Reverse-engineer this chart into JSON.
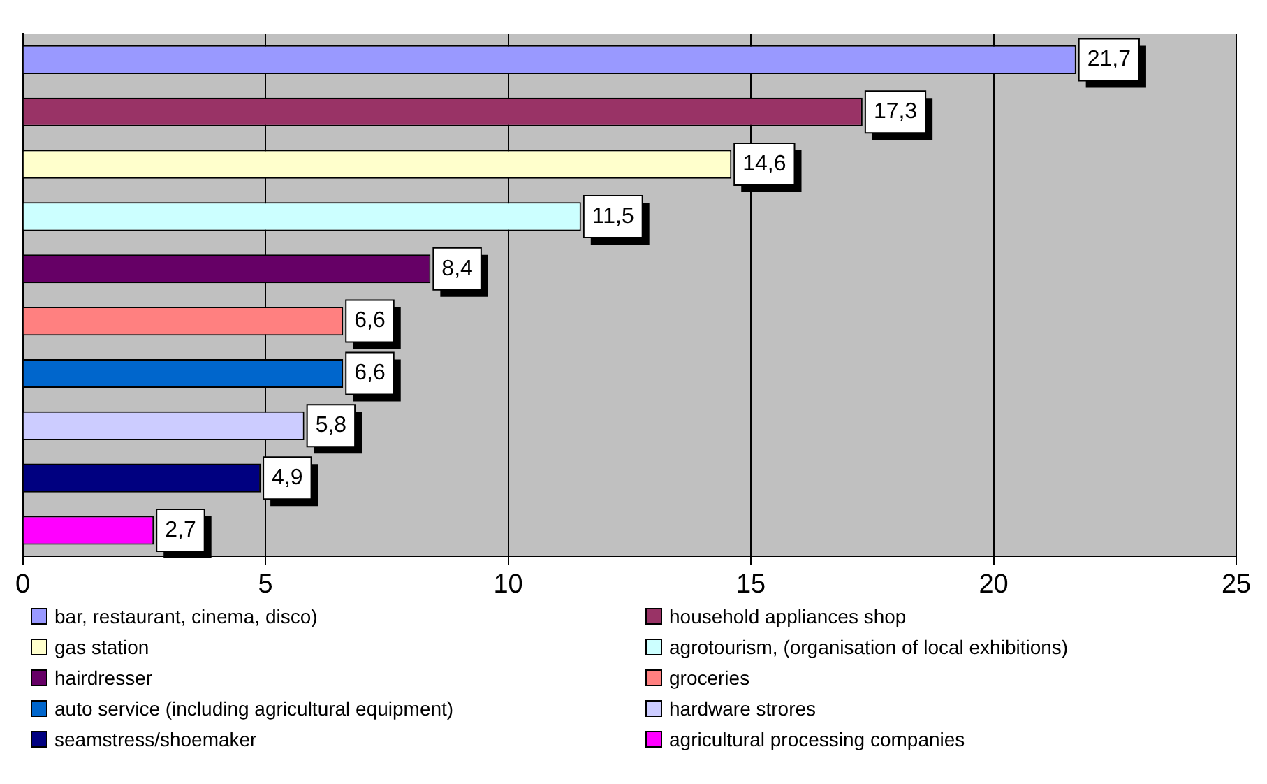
{
  "chart_data": {
    "type": "bar",
    "orientation": "horizontal",
    "categories": [
      null,
      null,
      null,
      null,
      null,
      null,
      null,
      null,
      null,
      null
    ],
    "series": [
      {
        "name": "bar, restaurant, cinema, disco)",
        "color": "#9999ff",
        "values": [
          21.7,
          null,
          null,
          null,
          null,
          null,
          null,
          null,
          null,
          null
        ],
        "value_labels": [
          "21,7",
          null,
          null,
          null,
          null,
          null,
          null,
          null,
          null,
          null
        ]
      },
      {
        "name": "household appliances shop",
        "color": "#993366",
        "values": [
          null,
          17.3,
          null,
          null,
          null,
          null,
          null,
          null,
          null,
          null
        ],
        "value_labels": [
          null,
          "17,3",
          null,
          null,
          null,
          null,
          null,
          null,
          null,
          null
        ]
      },
      {
        "name": "gas station",
        "color": "#ffffcc",
        "values": [
          null,
          null,
          14.6,
          null,
          null,
          null,
          null,
          null,
          null,
          null
        ],
        "value_labels": [
          null,
          null,
          "14,6",
          null,
          null,
          null,
          null,
          null,
          null,
          null
        ]
      },
      {
        "name": "agrotourism, (organisation of local exhibitions)",
        "color": "#ccffff",
        "values": [
          null,
          null,
          null,
          11.5,
          null,
          null,
          null,
          null,
          null,
          null
        ],
        "value_labels": [
          null,
          null,
          null,
          "11,5",
          null,
          null,
          null,
          null,
          null,
          null
        ]
      },
      {
        "name": "hairdresser",
        "color": "#660066",
        "values": [
          null,
          null,
          null,
          null,
          8.4,
          null,
          null,
          null,
          null,
          null
        ],
        "value_labels": [
          null,
          null,
          null,
          null,
          "8,4",
          null,
          null,
          null,
          null,
          null
        ]
      },
      {
        "name": "groceries",
        "color": "#ff8080",
        "values": [
          null,
          null,
          null,
          null,
          null,
          6.6,
          null,
          null,
          null,
          null
        ],
        "value_labels": [
          null,
          null,
          null,
          null,
          null,
          "6,6",
          null,
          null,
          null,
          null
        ]
      },
      {
        "name": "auto service (including agricultural equipment)",
        "color": "#0066cc",
        "values": [
          null,
          null,
          null,
          null,
          null,
          null,
          6.6,
          null,
          null,
          null
        ],
        "value_labels": [
          null,
          null,
          null,
          null,
          null,
          null,
          "6,6",
          null,
          null,
          null
        ]
      },
      {
        "name": "hardware strores",
        "color": "#ccccff",
        "values": [
          null,
          null,
          null,
          null,
          null,
          null,
          null,
          5.8,
          null,
          null
        ],
        "value_labels": [
          null,
          null,
          null,
          null,
          null,
          null,
          null,
          "5,8",
          null,
          null
        ]
      },
      {
        "name": "seamstress/shoemaker",
        "color": "#000080",
        "values": [
          null,
          null,
          null,
          null,
          null,
          null,
          null,
          null,
          4.9,
          null
        ],
        "value_labels": [
          null,
          null,
          null,
          null,
          null,
          null,
          null,
          null,
          "4,9",
          null
        ]
      },
      {
        "name": "agricultural processing companies",
        "color": "#ff00ff",
        "values": [
          null,
          null,
          null,
          null,
          null,
          null,
          null,
          null,
          null,
          2.7
        ],
        "value_labels": [
          null,
          null,
          null,
          null,
          null,
          null,
          null,
          null,
          null,
          "2,7"
        ]
      }
    ],
    "xlim": [
      0,
      25
    ],
    "xticks": [
      0,
      5,
      10,
      15,
      20,
      25
    ],
    "grid": "x",
    "legend": "bottom"
  }
}
